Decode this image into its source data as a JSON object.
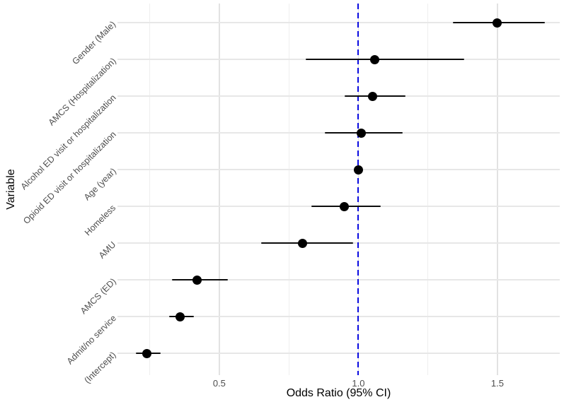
{
  "chart_data": {
    "type": "scatter",
    "variant": "forest-plot-odds-ratios",
    "title": "",
    "xlabel": "Odds Ratio (95% CI)",
    "ylabel": "Variable",
    "x_ticks": [
      0.5,
      1.0,
      1.5
    ],
    "x_tick_labels": [
      "0.5",
      "1.0",
      "1.5"
    ],
    "xlim": [
      0.134,
      1.724
    ],
    "grid": {
      "major_x": [
        0.5,
        1.0,
        1.5
      ],
      "minor_x": [
        0.25,
        0.75,
        1.25
      ],
      "horizontal_row_lines": true
    },
    "reference_line": {
      "x": 1.0,
      "style": "dashed",
      "color": "#0a0ae0"
    },
    "legend": "none",
    "rows": [
      {
        "label": "Gender (Male)",
        "or": 1.5,
        "ci_low": 1.34,
        "ci_high": 1.67
      },
      {
        "label": "AMCS (Hospitalization)",
        "or": 1.06,
        "ci_low": 0.81,
        "ci_high": 1.38
      },
      {
        "label": "Alcohol ED visit or hospitalization",
        "or": 1.05,
        "ci_low": 0.95,
        "ci_high": 1.17
      },
      {
        "label": "Opioid ED visit or hospitalization",
        "or": 1.01,
        "ci_low": 0.88,
        "ci_high": 1.16
      },
      {
        "label": "Age (year)",
        "or": 1.0,
        "ci_low": 0.99,
        "ci_high": 1.0
      },
      {
        "label": "Homeless",
        "or": 0.95,
        "ci_low": 0.83,
        "ci_high": 1.08
      },
      {
        "label": "AMU",
        "or": 0.8,
        "ci_low": 0.65,
        "ci_high": 0.98
      },
      {
        "label": "AMCS (ED)",
        "or": 0.42,
        "ci_low": 0.33,
        "ci_high": 0.53
      },
      {
        "label": "Admit/no service",
        "or": 0.36,
        "ci_low": 0.32,
        "ci_high": 0.41
      },
      {
        "label": "(Intercept)",
        "or": 0.24,
        "ci_low": 0.2,
        "ci_high": 0.29
      }
    ],
    "colors": {
      "point": "#000000",
      "error_bar": "#0d0d0d",
      "reference_line": "#0a0ae0",
      "grid_major": "#e2e2e2",
      "grid_minor": "#efefef",
      "grid_horizontal": "#e7e7e7",
      "axis_text": "#4d4d4d",
      "axis_title": "#000000",
      "background": "#ffffff"
    }
  }
}
